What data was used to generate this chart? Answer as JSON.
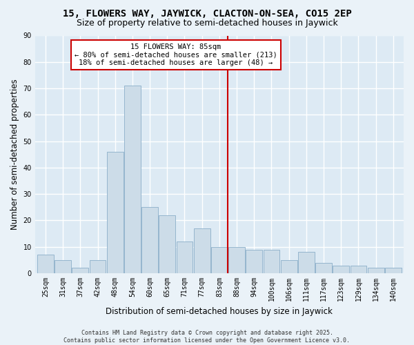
{
  "title": "15, FLOWERS WAY, JAYWICK, CLACTON-ON-SEA, CO15 2EP",
  "subtitle": "Size of property relative to semi-detached houses in Jaywick",
  "xlabel": "Distribution of semi-detached houses by size in Jaywick",
  "ylabel": "Number of semi-detached properties",
  "categories": [
    "25sqm",
    "31sqm",
    "37sqm",
    "42sqm",
    "48sqm",
    "54sqm",
    "60sqm",
    "65sqm",
    "71sqm",
    "77sqm",
    "83sqm",
    "88sqm",
    "94sqm",
    "100sqm",
    "106sqm",
    "111sqm",
    "117sqm",
    "123sqm",
    "129sqm",
    "134sqm",
    "140sqm"
  ],
  "values": [
    7,
    5,
    2,
    5,
    46,
    71,
    25,
    22,
    12,
    17,
    10,
    10,
    9,
    9,
    5,
    8,
    4,
    3,
    3,
    2,
    2
  ],
  "bar_color": "#ccdce8",
  "bar_edge_color": "#8aaec8",
  "vline_color": "#cc0000",
  "vline_index": 10.5,
  "annotation_text": "15 FLOWERS WAY: 85sqm\n← 80% of semi-detached houses are smaller (213)\n18% of semi-detached houses are larger (48) →",
  "annotation_box_color": "#ffffff",
  "annotation_box_edge": "#cc0000",
  "ylim": [
    0,
    90
  ],
  "yticks": [
    0,
    10,
    20,
    30,
    40,
    50,
    60,
    70,
    80,
    90
  ],
  "footer": "Contains HM Land Registry data © Crown copyright and database right 2025.\nContains public sector information licensed under the Open Government Licence v3.0.",
  "fig_bg_color": "#eaf2f8",
  "plot_bg_color": "#ddeaf4",
  "title_fontsize": 10,
  "subtitle_fontsize": 9,
  "axis_label_fontsize": 8.5,
  "tick_fontsize": 7,
  "footer_fontsize": 6,
  "grid_color": "#ffffff",
  "grid_linewidth": 1.0
}
